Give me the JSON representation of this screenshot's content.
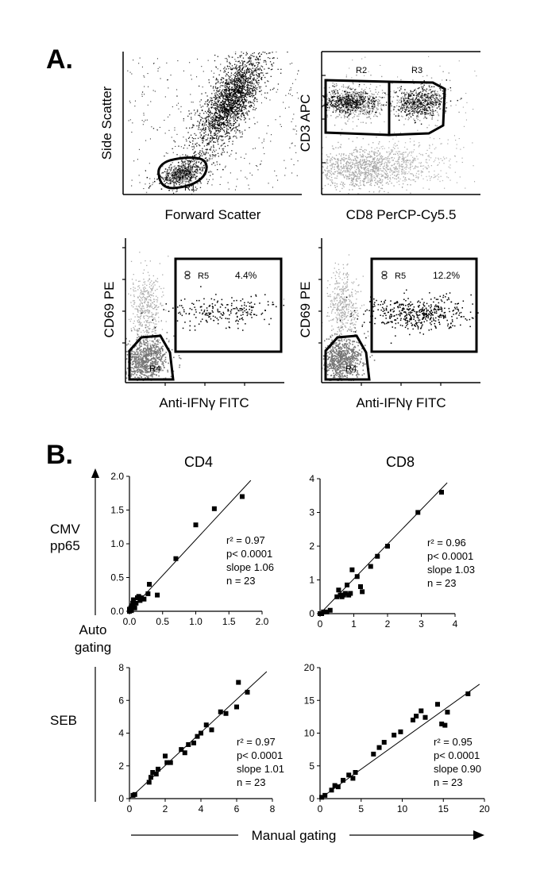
{
  "panel_a": {
    "label": "A.",
    "plots": [
      {
        "id": "scatter",
        "xlabel": "Forward Scatter",
        "ylabel": "Side Scatter",
        "gates": [
          {
            "name": "R1"
          }
        ]
      },
      {
        "id": "cd3cd8",
        "xlabel": "CD8 PerCP-Cy5.5",
        "ylabel": "CD3 APC",
        "gates": [
          {
            "name": "R2"
          },
          {
            "name": "R3"
          }
        ]
      },
      {
        "id": "ifng1",
        "xlabel": "Anti-IFNγ FITC",
        "ylabel": "CD69 PE",
        "gates": [
          {
            "name": "R4"
          },
          {
            "name": "R5",
            "percent": "4.4%"
          }
        ]
      },
      {
        "id": "ifng2",
        "xlabel": "Anti-IFNγ FITC",
        "ylabel": "CD69 PE",
        "gates": [
          {
            "name": "R4"
          },
          {
            "name": "R5",
            "percent": "12.2%"
          }
        ]
      }
    ]
  },
  "panel_b": {
    "label": "B.",
    "column_headers": [
      "CD4",
      "CD8"
    ],
    "row_labels": {
      "cmv": [
        "CMV",
        "pp65"
      ],
      "seb": "SEB"
    },
    "y_axis_title": [
      "Auto",
      "gating"
    ],
    "x_axis_title": "Manual gating"
  },
  "chart_data": [
    {
      "type": "scatter",
      "name": "CMV pp65 CD4",
      "xlim": [
        0,
        2.0
      ],
      "ylim": [
        0,
        2.0
      ],
      "xticks": [
        "0.0",
        "0.5",
        "1.0",
        "1.5",
        "2.0"
      ],
      "yticks": [
        "0.0",
        "0.5",
        "1.0",
        "1.5",
        "2.0"
      ],
      "stats": [
        "r² = 0.97",
        "p< 0.0001",
        "slope 1.06",
        "n = 23"
      ],
      "fit_slope": 1.06,
      "points": [
        [
          0.0,
          0.0
        ],
        [
          0.01,
          0.02
        ],
        [
          0.02,
          0.05
        ],
        [
          0.03,
          0.01
        ],
        [
          0.04,
          0.08
        ],
        [
          0.05,
          0.12
        ],
        [
          0.06,
          0.17
        ],
        [
          0.08,
          0.05
        ],
        [
          0.1,
          0.12
        ],
        [
          0.12,
          0.2
        ],
        [
          0.14,
          0.22
        ],
        [
          0.16,
          0.16
        ],
        [
          0.18,
          0.2
        ],
        [
          0.22,
          0.18
        ],
        [
          0.3,
          0.4
        ],
        [
          0.28,
          0.26
        ],
        [
          0.42,
          0.24
        ],
        [
          0.7,
          0.78
        ],
        [
          1.0,
          1.28
        ],
        [
          1.28,
          1.52
        ],
        [
          1.7,
          1.7
        ],
        [
          0.05,
          0.06
        ],
        [
          0.0,
          0.03
        ]
      ]
    },
    {
      "type": "scatter",
      "name": "CMV pp65 CD8",
      "xlim": [
        0,
        4
      ],
      "ylim": [
        0,
        4
      ],
      "xticks": [
        "0",
        "1",
        "2",
        "3",
        "4"
      ],
      "yticks": [
        "0",
        "1",
        "2",
        "3",
        "4"
      ],
      "stats": [
        "r² = 0.96",
        "p< 0.0001",
        "slope 1.03",
        "n = 23"
      ],
      "fit_slope": 1.03,
      "points": [
        [
          0.0,
          0.0
        ],
        [
          0.1,
          0.05
        ],
        [
          0.3,
          0.1
        ],
        [
          0.5,
          0.5
        ],
        [
          0.55,
          0.7
        ],
        [
          0.6,
          0.55
        ],
        [
          0.7,
          0.55
        ],
        [
          0.75,
          0.6
        ],
        [
          0.8,
          0.85
        ],
        [
          0.85,
          0.55
        ],
        [
          0.9,
          0.6
        ],
        [
          0.95,
          1.3
        ],
        [
          1.1,
          1.1
        ],
        [
          1.2,
          0.8
        ],
        [
          1.25,
          0.65
        ],
        [
          1.5,
          1.4
        ],
        [
          1.7,
          1.7
        ],
        [
          2.0,
          2.0
        ],
        [
          2.9,
          3.0
        ],
        [
          3.6,
          3.6
        ],
        [
          0.2,
          0.05
        ],
        [
          0.65,
          0.5
        ],
        [
          0.05,
          0.0
        ]
      ]
    },
    {
      "type": "scatter",
      "name": "SEB CD4",
      "xlim": [
        0,
        8
      ],
      "ylim": [
        0,
        8
      ],
      "xticks": [
        "0",
        "2",
        "4",
        "6",
        "8"
      ],
      "yticks": [
        "0",
        "2",
        "4",
        "6",
        "8"
      ],
      "stats": [
        "r² = 0.97",
        "p< 0.0001",
        "slope 1.01",
        "n = 23"
      ],
      "fit_slope": 1.01,
      "points": [
        [
          0.2,
          0.2
        ],
        [
          0.3,
          0.25
        ],
        [
          1.1,
          1.0
        ],
        [
          1.2,
          1.3
        ],
        [
          1.3,
          1.6
        ],
        [
          1.6,
          1.8
        ],
        [
          2.0,
          2.6
        ],
        [
          2.1,
          2.2
        ],
        [
          2.3,
          2.2
        ],
        [
          2.9,
          3.0
        ],
        [
          3.1,
          2.8
        ],
        [
          3.3,
          3.3
        ],
        [
          3.6,
          3.4
        ],
        [
          3.8,
          3.8
        ],
        [
          4.3,
          4.5
        ],
        [
          4.6,
          4.2
        ],
        [
          5.1,
          5.3
        ],
        [
          5.4,
          5.2
        ],
        [
          6.0,
          5.6
        ],
        [
          6.1,
          7.1
        ],
        [
          6.6,
          6.5
        ],
        [
          1.5,
          1.5
        ],
        [
          4.0,
          4.0
        ]
      ]
    },
    {
      "type": "scatter",
      "name": "SEB CD8",
      "xlim": [
        0,
        20
      ],
      "ylim": [
        0,
        20
      ],
      "xticks": [
        "0",
        "5",
        "10",
        "15",
        "20"
      ],
      "yticks": [
        "0",
        "5",
        "10",
        "15",
        "20"
      ],
      "stats": [
        "r² = 0.95",
        "p< 0.0001",
        "slope 0.90",
        "n = 23"
      ],
      "fit_slope": 0.9,
      "points": [
        [
          0.2,
          0.2
        ],
        [
          0.6,
          0.5
        ],
        [
          1.4,
          1.3
        ],
        [
          1.8,
          2.0
        ],
        [
          2.2,
          1.8
        ],
        [
          2.8,
          2.8
        ],
        [
          3.5,
          3.6
        ],
        [
          4.0,
          3.1
        ],
        [
          4.3,
          4.0
        ],
        [
          6.5,
          6.8
        ],
        [
          7.2,
          7.8
        ],
        [
          7.8,
          8.6
        ],
        [
          9.0,
          9.7
        ],
        [
          9.8,
          10.2
        ],
        [
          11.3,
          12.0
        ],
        [
          11.7,
          12.6
        ],
        [
          12.3,
          13.4
        ],
        [
          12.8,
          12.4
        ],
        [
          14.3,
          14.4
        ],
        [
          14.8,
          11.4
        ],
        [
          15.2,
          11.2
        ],
        [
          15.5,
          13.2
        ],
        [
          18.0,
          16.0
        ]
      ]
    }
  ]
}
